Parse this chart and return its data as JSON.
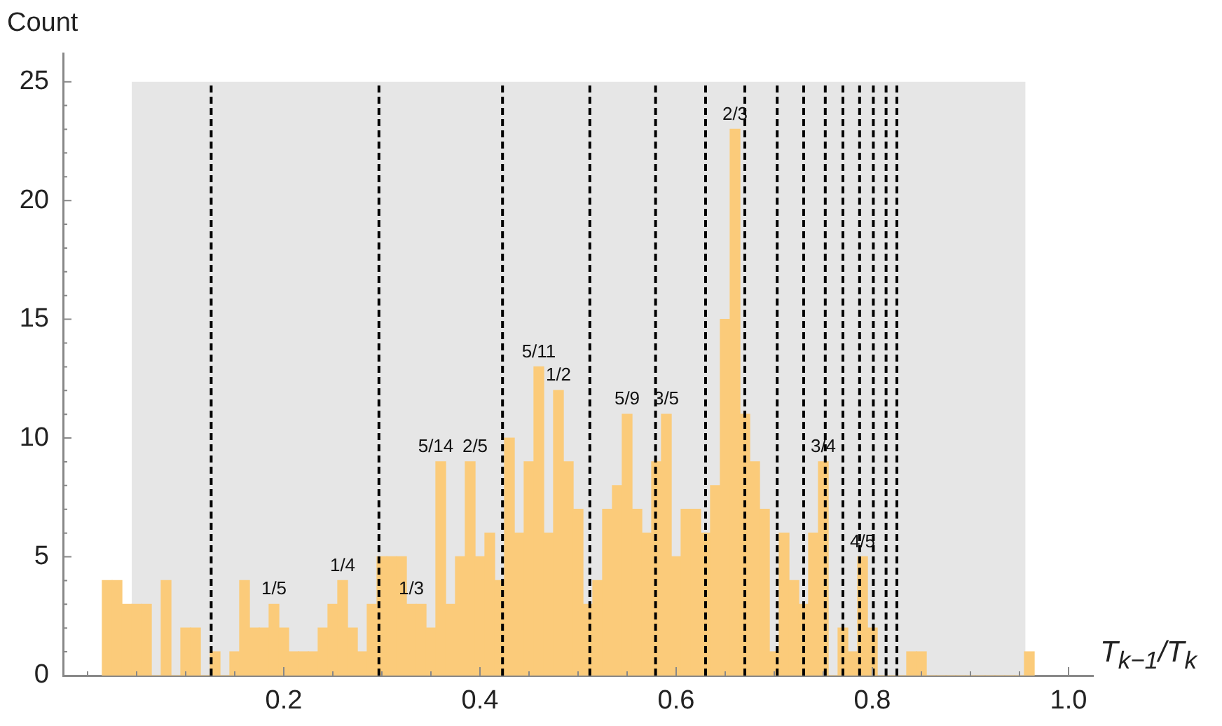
{
  "chart_data": {
    "type": "histogram",
    "xlabel": "T$_{k−1}$/T$_{k}$",
    "ylabel": "Count",
    "bins": [
      0.015,
      0.025,
      0.035,
      0.045,
      0.055,
      0.065,
      0.075,
      0.085,
      0.095,
      0.105,
      0.115,
      0.125,
      0.135,
      0.145,
      0.155,
      0.165,
      0.175,
      0.185,
      0.195,
      0.205,
      0.215,
      0.225,
      0.235,
      0.245,
      0.255,
      0.265,
      0.275,
      0.285,
      0.295,
      0.305,
      0.315,
      0.325,
      0.335,
      0.345,
      0.355,
      0.365,
      0.375,
      0.385,
      0.395,
      0.405,
      0.415,
      0.425,
      0.435,
      0.445,
      0.455,
      0.465,
      0.475,
      0.485,
      0.495,
      0.505,
      0.515,
      0.525,
      0.535,
      0.545,
      0.555,
      0.565,
      0.575,
      0.585,
      0.595,
      0.605,
      0.615,
      0.625,
      0.635,
      0.645,
      0.655,
      0.665,
      0.675,
      0.685,
      0.695,
      0.705,
      0.715,
      0.725,
      0.735,
      0.745,
      0.755,
      0.765,
      0.775,
      0.785,
      0.795,
      0.805,
      0.815,
      0.825,
      0.835,
      0.845,
      0.855,
      0.865,
      0.875,
      0.885,
      0.895,
      0.905,
      0.915,
      0.925,
      0.935,
      0.945,
      0.955,
      0.965
    ],
    "values": [
      4,
      4,
      3,
      3,
      3,
      0,
      4,
      0,
      2,
      2,
      0,
      1,
      0,
      1,
      4,
      2,
      2,
      3,
      2,
      1,
      1,
      1,
      2,
      3,
      4,
      2,
      1,
      3,
      5,
      5,
      5,
      3,
      3,
      2,
      9,
      3,
      5,
      9,
      5,
      6,
      4,
      10,
      6,
      9,
      13,
      6,
      12,
      9,
      7,
      3,
      4,
      7,
      8,
      11,
      7,
      6,
      9,
      11,
      5,
      7,
      7,
      6,
      8,
      15,
      23,
      11,
      9,
      7,
      1,
      6,
      4,
      3,
      6,
      9,
      0,
      2,
      1,
      5,
      2,
      0,
      0,
      0,
      1,
      1,
      0,
      0,
      0,
      0,
      0,
      0,
      0,
      0,
      0,
      0,
      1
    ],
    "color": "#fbcb7a",
    "xlim": [
      -0.025,
      1.025
    ],
    "xticks": [
      {
        "value": 0,
        "label": null
      },
      {
        "value": 0.05,
        "label": null
      },
      {
        "value": 0.1,
        "label": null
      },
      {
        "value": 0.15,
        "label": null
      },
      0.2,
      {
        "value": 0.25,
        "label": null
      },
      {
        "value": 0.3,
        "label": null
      },
      {
        "value": 0.35,
        "label": null
      },
      0.4,
      {
        "value": 0.45,
        "label": null
      },
      {
        "value": 0.5,
        "label": null
      },
      {
        "value": 0.55,
        "label": null
      },
      0.6,
      {
        "value": 0.65,
        "label": null
      },
      {
        "value": 0.7,
        "label": null
      },
      {
        "value": 0.75,
        "label": null
      },
      0.8,
      {
        "value": 0.85,
        "label": null
      },
      {
        "value": 0.9,
        "label": null
      },
      {
        "value": 0.95,
        "label": null
      },
      {
        "value": 1,
        "label": "1.0"
      }
    ],
    "ylim": [
      0,
      26.2
    ],
    "yticks": [
      0,
      {
        "value": 1,
        "label": null
      },
      {
        "value": 2,
        "label": null
      },
      {
        "value": 3,
        "label": null
      },
      {
        "value": 4,
        "label": null
      },
      5,
      {
        "value": 6,
        "label": null
      },
      {
        "value": 7,
        "label": null
      },
      {
        "value": 8,
        "label": null
      },
      {
        "value": 9,
        "label": null
      },
      10,
      {
        "value": 11,
        "label": null
      },
      {
        "value": 12,
        "label": null
      },
      {
        "value": 13,
        "label": null
      },
      {
        "value": 14,
        "label": null
      },
      15,
      {
        "value": 16,
        "label": null
      },
      {
        "value": 17,
        "label": null
      },
      {
        "value": 18,
        "label": null
      },
      {
        "value": 19,
        "label": null
      },
      20,
      {
        "value": 21,
        "label": null
      },
      {
        "value": 22,
        "label": null
      },
      {
        "value": 23,
        "label": null
      },
      {
        "value": 24,
        "label": null
      },
      25
    ],
    "grid": false,
    "legend": false,
    "bands": [
      {
        "axis": "x",
        "from": 0.045,
        "to": 0.956,
        "color": "#e6e6e6"
      }
    ],
    "ref_lines": [
      {
        "axis": "x",
        "value": 0.126,
        "color": "#000000",
        "line_style": "dashed"
      },
      {
        "axis": "x",
        "value": 0.297,
        "color": "#000000",
        "line_style": "dashed"
      },
      {
        "axis": "x",
        "value": 0.423,
        "color": "#000000",
        "line_style": "dashed"
      },
      {
        "axis": "x",
        "value": 0.512,
        "color": "#000000",
        "line_style": "dashed"
      },
      {
        "axis": "x",
        "value": 0.579,
        "color": "#000000",
        "line_style": "dashed"
      },
      {
        "axis": "x",
        "value": 0.63,
        "color": "#000000",
        "line_style": "dashed"
      },
      {
        "axis": "x",
        "value": 0.67,
        "color": "#000000",
        "line_style": "dashed"
      },
      {
        "axis": "x",
        "value": 0.703,
        "color": "#000000",
        "line_style": "dashed"
      },
      {
        "axis": "x",
        "value": 0.73,
        "color": "#000000",
        "line_style": "dashed"
      },
      {
        "axis": "x",
        "value": 0.752,
        "color": "#000000",
        "line_style": "dashed"
      },
      {
        "axis": "x",
        "value": 0.77,
        "color": "#000000",
        "line_style": "dashed"
      },
      {
        "axis": "x",
        "value": 0.787,
        "color": "#000000",
        "line_style": "dashed"
      },
      {
        "axis": "x",
        "value": 0.801,
        "color": "#000000",
        "line_style": "dashed"
      },
      {
        "axis": "x",
        "value": 0.814,
        "color": "#000000",
        "line_style": "dashed"
      },
      {
        "axis": "x",
        "value": 0.825,
        "color": "#000000",
        "line_style": "dashed"
      }
    ],
    "annotations": [
      {
        "text": "1/5",
        "x": 0.19,
        "y": 3
      },
      {
        "text": "1/4",
        "x": 0.26,
        "y": 4
      },
      {
        "text": "1/3",
        "x": 0.33,
        "y": 3
      },
      {
        "text": "5/14",
        "x": 0.355,
        "y": 9
      },
      {
        "text": "2/5",
        "x": 0.395,
        "y": 9
      },
      {
        "text": "5/11",
        "x": 0.46,
        "y": 13
      },
      {
        "text": "1/2",
        "x": 0.48,
        "y": 12
      },
      {
        "text": "5/9",
        "x": 0.55,
        "y": 11
      },
      {
        "text": "3/5",
        "x": 0.59,
        "y": 11
      },
      {
        "text": "2/3",
        "x": 0.66,
        "y": 23
      },
      {
        "text": "3/4",
        "x": 0.75,
        "y": 9
      },
      {
        "text": "4/5",
        "x": 0.79,
        "y": 5
      }
    ]
  }
}
